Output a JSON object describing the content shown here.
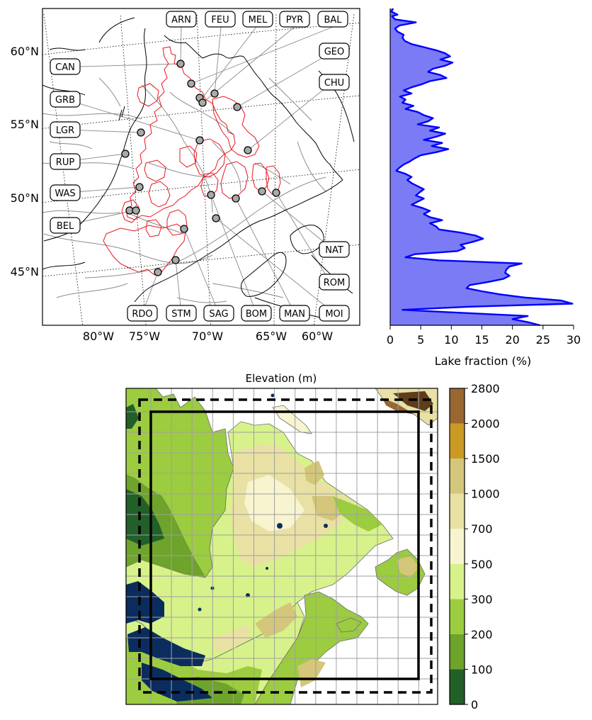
{
  "map": {
    "lat_labels": [
      {
        "text": "60°N",
        "lat": 60
      },
      {
        "text": "55°N",
        "lat": 55
      },
      {
        "text": "50°N",
        "lat": 50
      },
      {
        "text": "45°N",
        "lat": 45
      }
    ],
    "lon_labels": [
      {
        "text": "80°W",
        "lon": -80
      },
      {
        "text": "75°W",
        "lon": -75
      },
      {
        "text": "70°W",
        "lon": -70
      },
      {
        "text": "65°W",
        "lon": -65
      },
      {
        "text": "60°W",
        "lon": -60
      }
    ],
    "stations": {
      "top": [
        "ARN",
        "FEU",
        "MEL",
        "PYR",
        "BAL"
      ],
      "left": [
        "CAN",
        "GRB",
        "LGR",
        "RUP",
        "WAS",
        "BEL"
      ],
      "right": [
        "GEO",
        "CHU",
        "NAT",
        "ROM"
      ],
      "bottom": [
        "RDO",
        "STM",
        "SAG",
        "BOM",
        "MAN",
        "MOI"
      ]
    },
    "colors": {
      "basin_outline": "#e8141e",
      "station_marker": "#a9a9a9",
      "land_line": "#000000",
      "river_line": "#8c8c8c"
    }
  },
  "lake_chart": {
    "xlabel": "Lake fraction (%)",
    "xticks": [
      "0",
      "5",
      "10",
      "15",
      "20",
      "25",
      "30"
    ],
    "xlim": [
      0,
      30
    ],
    "lat_range": [
      42,
      62.5
    ],
    "fill_color": "#7b7bf5",
    "line_color": "#0000ff",
    "lat": [
      62.5,
      62.3,
      62.1,
      62.0,
      61.8,
      61.6,
      61.4,
      61.2,
      61.0,
      60.8,
      60.6,
      60.4,
      60.2,
      60.0,
      59.8,
      59.6,
      59.4,
      59.2,
      59.0,
      58.8,
      58.6,
      58.4,
      58.2,
      58.0,
      57.8,
      57.6,
      57.4,
      57.2,
      57.0,
      56.8,
      56.6,
      56.4,
      56.2,
      56.0,
      55.8,
      55.6,
      55.4,
      55.2,
      55.0,
      54.8,
      54.6,
      54.4,
      54.2,
      54.0,
      53.8,
      53.6,
      53.4,
      53.2,
      53.0,
      52.8,
      52.6,
      52.4,
      52.2,
      52.0,
      51.8,
      51.6,
      51.4,
      51.2,
      51.0,
      50.8,
      50.6,
      50.4,
      50.2,
      50.0,
      49.8,
      49.6,
      49.4,
      49.2,
      49.0,
      48.8,
      48.6,
      48.4,
      48.2,
      48.0,
      47.8,
      47.6,
      47.4,
      47.2,
      47.0,
      46.8,
      46.6,
      46.4,
      46.2,
      46.0,
      45.8,
      45.6,
      45.4,
      45.2,
      45.0,
      44.8,
      44.6,
      44.4,
      44.2,
      44.0,
      43.8,
      43.6,
      43.4,
      43.2,
      43.0,
      42.8,
      42.6,
      42.4,
      42.2,
      42.0
    ],
    "values": [
      0.5,
      0.2,
      1.2,
      0.3,
      0.8,
      4.2,
      1.5,
      0.8,
      1.2,
      2.2,
      2.0,
      2.4,
      3.5,
      5.5,
      7.5,
      9.0,
      9.8,
      8.2,
      10.2,
      9.0,
      7.0,
      6.2,
      8.2,
      9.2,
      6.5,
      5.2,
      3.5,
      2.2,
      3.5,
      1.6,
      2.5,
      2.0,
      3.8,
      2.5,
      4.5,
      5.5,
      7.0,
      6.2,
      4.5,
      8.0,
      6.5,
      9.0,
      7.5,
      5.5,
      8.5,
      6.8,
      9.5,
      7.5,
      5.0,
      4.0,
      3.2,
      2.2,
      1.5,
      1.0,
      2.5,
      3.5,
      2.8,
      3.5,
      4.5,
      5.5,
      4.8,
      4.2,
      5.5,
      4.5,
      3.5,
      5.2,
      6.5,
      5.5,
      6.5,
      8.5,
      6.5,
      7.5,
      8.0,
      11.5,
      14.0,
      15.2,
      13.5,
      11.5,
      12.2,
      11.0,
      4.0,
      2.5,
      8.0,
      21.5,
      19.5,
      19.0,
      18.8,
      19.5,
      18.5,
      16.0,
      13.0,
      12.5,
      15.0,
      18.0,
      22.0,
      28.0,
      29.8,
      13.0,
      2.0,
      12.0,
      22.5,
      20.0,
      22.5,
      24.5
    ]
  },
  "elevation_map": {
    "title": "Elevation (m)",
    "colorbar_ticks": [
      "0",
      "100",
      "200",
      "300",
      "500",
      "700",
      "1000",
      "1500",
      "2000",
      "2800"
    ],
    "colorbar_colors": [
      "#235f29",
      "#6ea32c",
      "#9ccc3f",
      "#d7f28a",
      "#f7f4cf",
      "#e9e1a4",
      "#d4c67a",
      "#cb9a22",
      "#9a6731",
      "#5e3d1a"
    ],
    "water_color": "#0b2d5e"
  }
}
